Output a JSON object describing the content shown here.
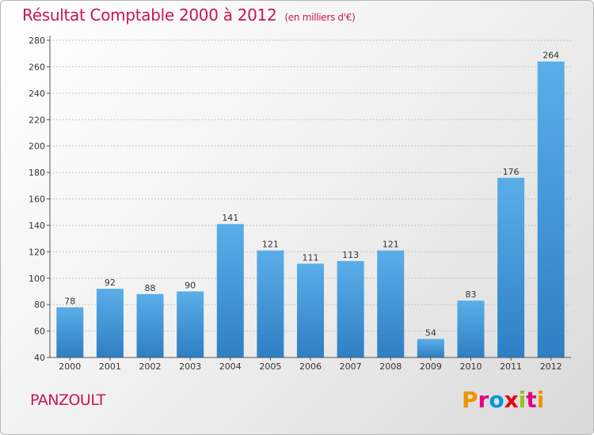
{
  "header": {
    "title": "Résultat Comptable 2000 à 2012",
    "subtitle": "(en milliers d'€)"
  },
  "footer": {
    "city": "PANZOULT",
    "logo_letters": [
      "P",
      "r",
      "o",
      "x",
      "i",
      "t",
      "i"
    ],
    "logo_colors": [
      "#f39200",
      "#e6007e",
      "#0098d9",
      "#e30613",
      "#95c11f",
      "#e6007e",
      "#f39200"
    ]
  },
  "chart_data": {
    "type": "bar",
    "categories": [
      "2000",
      "2001",
      "2002",
      "2003",
      "2004",
      "2005",
      "2006",
      "2007",
      "2008",
      "2009",
      "2010",
      "2011",
      "2012"
    ],
    "values": [
      78,
      92,
      88,
      90,
      141,
      121,
      111,
      113,
      121,
      54,
      83,
      176,
      264
    ],
    "yticks": [
      40,
      60,
      80,
      100,
      120,
      140,
      160,
      180,
      200,
      220,
      240,
      260,
      280
    ],
    "ylim": [
      40,
      280
    ],
    "grid": true,
    "bar_color_top": "#5aaee8",
    "bar_color_bottom": "#2e7fc4"
  }
}
